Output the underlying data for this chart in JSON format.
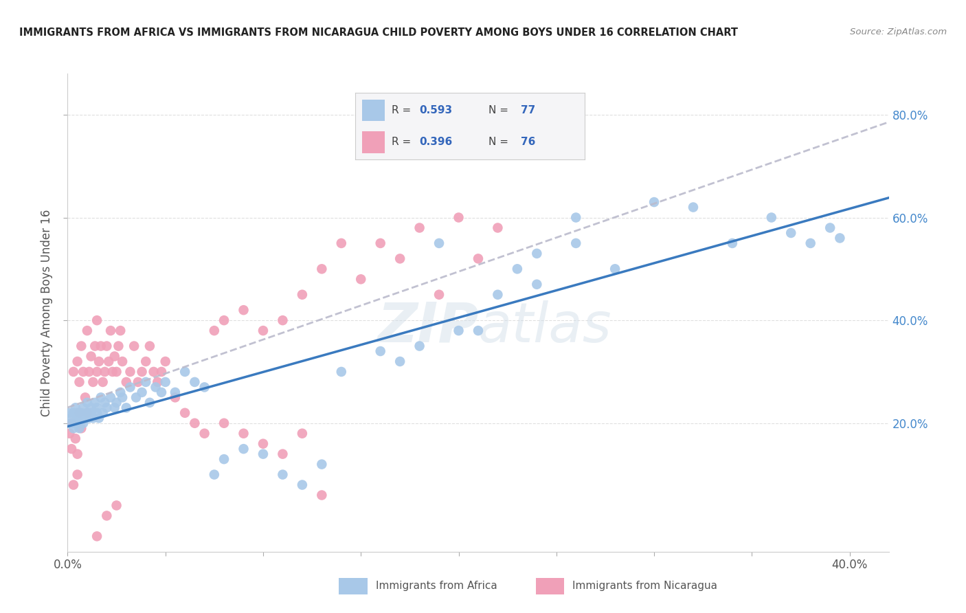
{
  "title": "IMMIGRANTS FROM AFRICA VS IMMIGRANTS FROM NICARAGUA CHILD POVERTY AMONG BOYS UNDER 16 CORRELATION CHART",
  "source": "Source: ZipAtlas.com",
  "ylabel": "Child Poverty Among Boys Under 16",
  "xlim": [
    0.0,
    0.42
  ],
  "ylim": [
    -0.05,
    0.88
  ],
  "africa_color": "#a8c8e8",
  "nicaragua_color": "#f0a0b8",
  "africa_line_color": "#3a7abf",
  "nicaragua_line_color": "#c8c8d8",
  "legend_text_color": "#4488cc",
  "legend_num_color": "#3366bb",
  "background_color": "#ffffff",
  "grid_color": "#d8d8d8",
  "africa_scatter_x": [
    0.001,
    0.002,
    0.002,
    0.003,
    0.003,
    0.004,
    0.004,
    0.005,
    0.005,
    0.006,
    0.006,
    0.007,
    0.007,
    0.008,
    0.008,
    0.009,
    0.01,
    0.01,
    0.011,
    0.012,
    0.012,
    0.013,
    0.014,
    0.015,
    0.015,
    0.016,
    0.017,
    0.018,
    0.019,
    0.02,
    0.022,
    0.024,
    0.025,
    0.027,
    0.028,
    0.03,
    0.032,
    0.035,
    0.038,
    0.04,
    0.042,
    0.045,
    0.048,
    0.05,
    0.055,
    0.06,
    0.065,
    0.07,
    0.075,
    0.08,
    0.09,
    0.1,
    0.11,
    0.12,
    0.13,
    0.14,
    0.16,
    0.17,
    0.18,
    0.2,
    0.21,
    0.22,
    0.23,
    0.24,
    0.26,
    0.28,
    0.3,
    0.32,
    0.34,
    0.36,
    0.37,
    0.38,
    0.39,
    0.395,
    0.24,
    0.26,
    0.19
  ],
  "africa_scatter_y": [
    0.22,
    0.2,
    0.21,
    0.19,
    0.22,
    0.2,
    0.23,
    0.21,
    0.22,
    0.2,
    0.19,
    0.22,
    0.21,
    0.23,
    0.2,
    0.21,
    0.22,
    0.24,
    0.21,
    0.22,
    0.23,
    0.21,
    0.24,
    0.22,
    0.23,
    0.21,
    0.25,
    0.22,
    0.24,
    0.23,
    0.25,
    0.23,
    0.24,
    0.26,
    0.25,
    0.23,
    0.27,
    0.25,
    0.26,
    0.28,
    0.24,
    0.27,
    0.26,
    0.28,
    0.26,
    0.3,
    0.28,
    0.27,
    0.1,
    0.13,
    0.15,
    0.14,
    0.1,
    0.08,
    0.12,
    0.3,
    0.34,
    0.32,
    0.35,
    0.38,
    0.38,
    0.45,
    0.5,
    0.53,
    0.55,
    0.5,
    0.63,
    0.62,
    0.55,
    0.6,
    0.57,
    0.55,
    0.58,
    0.56,
    0.47,
    0.6,
    0.55
  ],
  "nicaragua_scatter_x": [
    0.001,
    0.002,
    0.002,
    0.003,
    0.003,
    0.004,
    0.005,
    0.005,
    0.006,
    0.006,
    0.007,
    0.007,
    0.008,
    0.009,
    0.01,
    0.01,
    0.011,
    0.012,
    0.013,
    0.014,
    0.015,
    0.015,
    0.016,
    0.017,
    0.018,
    0.019,
    0.02,
    0.021,
    0.022,
    0.023,
    0.024,
    0.025,
    0.026,
    0.027,
    0.028,
    0.03,
    0.032,
    0.034,
    0.036,
    0.038,
    0.04,
    0.042,
    0.044,
    0.046,
    0.048,
    0.05,
    0.055,
    0.06,
    0.065,
    0.07,
    0.075,
    0.08,
    0.09,
    0.1,
    0.11,
    0.12,
    0.13,
    0.14,
    0.15,
    0.16,
    0.17,
    0.18,
    0.19,
    0.2,
    0.21,
    0.22,
    0.08,
    0.09,
    0.1,
    0.11,
    0.015,
    0.02,
    0.025,
    0.12,
    0.13,
    0.005
  ],
  "nicaragua_scatter_y": [
    0.18,
    0.15,
    0.2,
    0.08,
    0.3,
    0.17,
    0.32,
    0.14,
    0.28,
    0.22,
    0.35,
    0.19,
    0.3,
    0.25,
    0.38,
    0.22,
    0.3,
    0.33,
    0.28,
    0.35,
    0.3,
    0.4,
    0.32,
    0.35,
    0.28,
    0.3,
    0.35,
    0.32,
    0.38,
    0.3,
    0.33,
    0.3,
    0.35,
    0.38,
    0.32,
    0.28,
    0.3,
    0.35,
    0.28,
    0.3,
    0.32,
    0.35,
    0.3,
    0.28,
    0.3,
    0.32,
    0.25,
    0.22,
    0.2,
    0.18,
    0.38,
    0.4,
    0.42,
    0.38,
    0.4,
    0.45,
    0.5,
    0.55,
    0.48,
    0.55,
    0.52,
    0.58,
    0.45,
    0.6,
    0.52,
    0.58,
    0.2,
    0.18,
    0.16,
    0.14,
    -0.02,
    0.02,
    0.04,
    0.18,
    0.06,
    0.1
  ]
}
